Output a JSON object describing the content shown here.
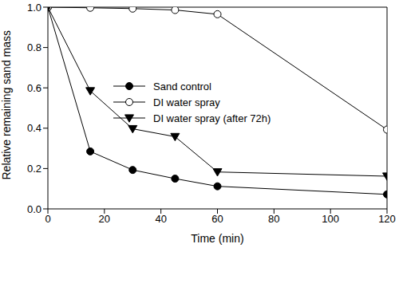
{
  "chart_data": {
    "type": "line",
    "x": [
      0,
      15,
      30,
      45,
      60,
      120
    ],
    "xlabel": "Time (min)",
    "ylabel": "Relative remaining sand mass",
    "xlim": [
      0,
      120
    ],
    "xticks": [
      0,
      20,
      40,
      60,
      80,
      100,
      120
    ],
    "ylim": [
      0,
      1.0
    ],
    "yticks": [
      {
        "value": 0,
        "label": "0.0"
      },
      0.2,
      0.4,
      0.6,
      0.8,
      {
        "value": 1.0,
        "label": "1.0"
      }
    ],
    "grid": false,
    "legend": "top",
    "series": [
      {
        "name": "Sand control",
        "color": "#000000",
        "marker": "filled_circle",
        "line_style": "solid",
        "values": [
          1.0,
          0.285,
          0.193,
          0.15,
          0.112,
          0.072
        ]
      },
      {
        "name": "DI water spray",
        "color": "#000000",
        "marker": "open_circle",
        "line_style": "solid",
        "values": [
          1.0,
          0.997,
          0.993,
          0.986,
          0.965,
          0.393
        ]
      },
      {
        "name": "DI water spray (after 72h)",
        "color": "#000000",
        "marker": "triangle_down",
        "line_style": "solid",
        "values": [
          1.0,
          0.585,
          0.397,
          0.358,
          0.183,
          0.162
        ]
      }
    ]
  }
}
